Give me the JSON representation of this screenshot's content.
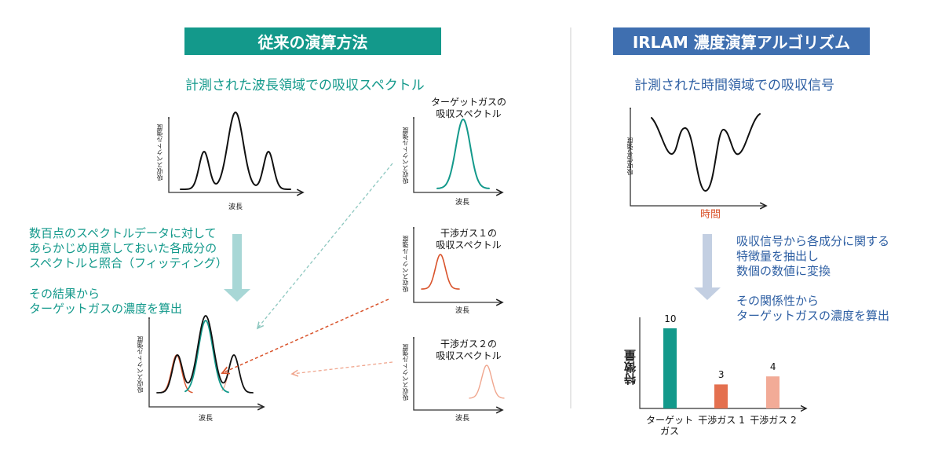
{
  "left": {
    "title": "従来の演算方法",
    "subtitle": "計測された波長領域での吸収スペクトル",
    "y_axis_label": "吸収スペクトル強度",
    "x_axis_label": "波長",
    "description1": "数百点のスペクトルデータに対して\nあらかじめ用意しておいた各成分の\nスペクトルと照合（フィッティング）",
    "description2": "その結果から\nターゲットガスの濃度を算出",
    "references": [
      {
        "title": "ターゲットガスの\n吸収スペクトル",
        "color": "#13998b"
      },
      {
        "title": "干渉ガス１の\n吸収スペクトル",
        "color": "#d9532b"
      },
      {
        "title": "干渉ガス２の\n吸収スペクトル",
        "color": "#f0a68e"
      }
    ]
  },
  "right": {
    "title": "IRLAM 濃度演算アルゴリズム",
    "subtitle": "計測された時間領域での吸収信号",
    "y_axis_label": "吸収信号強度",
    "x_axis_label": "時間",
    "description1": "吸収信号から各成分に関する\n特徴量を抽出し\n数個の数値に変換",
    "description2": "その関係性から\nターゲットガスの濃度を算出"
  },
  "chart_data": {
    "type": "bar",
    "ylabel": "特徴量",
    "categories": [
      "ターゲット\nガス",
      "干渉ガス 1",
      "干渉ガス 2"
    ],
    "values": [
      10,
      3,
      4
    ],
    "colors": [
      "#13998b",
      "#e4704f",
      "#f2ab97"
    ]
  },
  "colors": {
    "teal": "#13998b",
    "blue": "#3f6fb0",
    "red": "#d9532b"
  }
}
